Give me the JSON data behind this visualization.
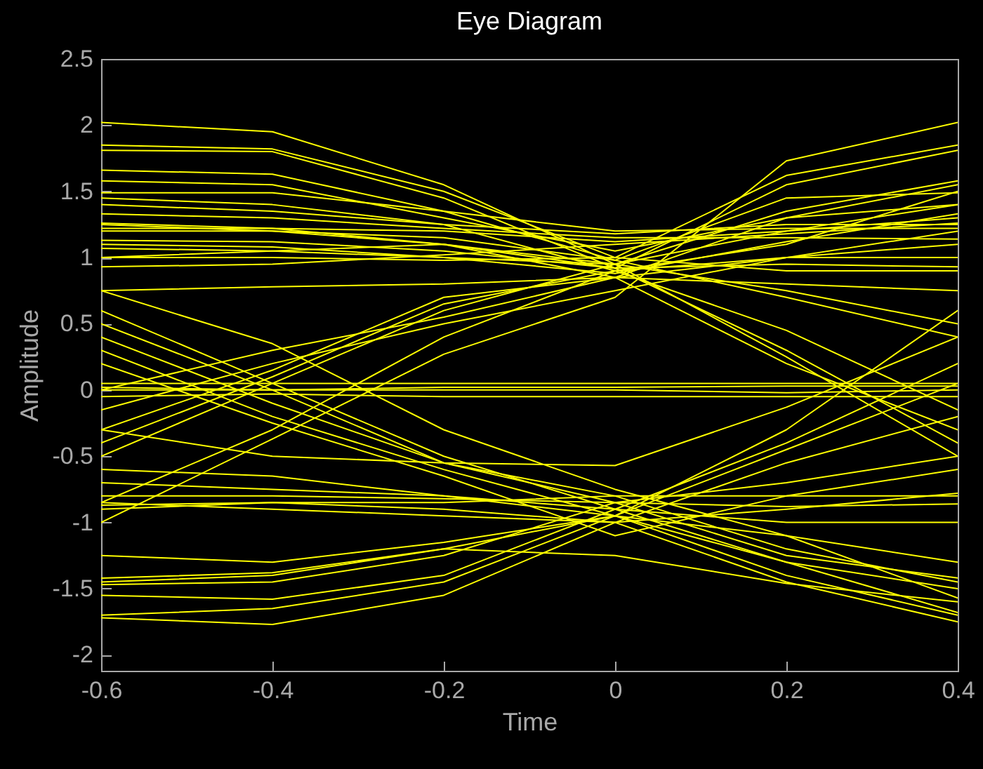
{
  "chart_data": {
    "type": "line",
    "title": "Eye Diagram",
    "xlabel": "Time",
    "ylabel": "Amplitude",
    "x": [
      -0.6,
      -0.4,
      -0.2,
      0,
      0.2,
      0.4
    ],
    "xlim": [
      -0.6,
      0.4
    ],
    "xticks": [
      -0.6,
      -0.4,
      -0.2,
      0,
      0.2,
      0.4
    ],
    "ylim": [
      -2.12,
      2.5
    ],
    "yticks": [
      -2,
      -1.5,
      -1,
      -0.5,
      0,
      0.5,
      1,
      1.5,
      2,
      2.5
    ],
    "series": [
      {
        "color": "#ffff00",
        "values": [
          2.02,
          1.95,
          1.55,
          0.95,
          1.35,
          1.58
        ]
      },
      {
        "color": "#ffff00",
        "values": [
          1.85,
          1.82,
          1.5,
          1.0,
          1.62,
          1.85
        ]
      },
      {
        "color": "#ffff00",
        "values": [
          1.81,
          1.8,
          1.45,
          0.92,
          1.55,
          1.81
        ]
      },
      {
        "color": "#ffff00",
        "values": [
          1.66,
          1.63,
          1.35,
          0.98,
          1.45,
          1.49
        ]
      },
      {
        "color": "#ffff00",
        "values": [
          1.58,
          1.55,
          1.3,
          1.05,
          1.3,
          1.4
        ]
      },
      {
        "color": "#ffff00",
        "values": [
          1.49,
          1.49,
          1.35,
          1.2,
          1.22,
          1.22
        ]
      },
      {
        "color": "#ffff00",
        "values": [
          1.4,
          1.35,
          1.25,
          1.18,
          1.25,
          1.25
        ]
      },
      {
        "color": "#ffff00",
        "values": [
          1.33,
          1.3,
          1.22,
          1.15,
          1.15,
          1.14
        ]
      },
      {
        "color": "#ffff00",
        "values": [
          1.26,
          1.22,
          1.2,
          1.12,
          1.2,
          1.3
        ]
      },
      {
        "color": "#ffff00",
        "values": [
          1.22,
          1.22,
          1.1,
          0.85,
          1.0,
          1.0
        ]
      },
      {
        "color": "#ffff00",
        "values": [
          1.13,
          1.12,
          1.05,
          0.92,
          0.95,
          0.93
        ]
      },
      {
        "color": "#ffff00",
        "values": [
          1.07,
          1.05,
          1.0,
          0.88,
          1.12,
          1.33
        ]
      },
      {
        "color": "#ffff00",
        "values": [
          1.0,
          1.0,
          0.98,
          1.0,
          0.9,
          0.9
        ]
      },
      {
        "color": "#ffff00",
        "values": [
          0.93,
          0.95,
          1.02,
          1.1,
          1.18,
          1.26
        ]
      },
      {
        "color": "#ffff00",
        "values": [
          1.2,
          1.2,
          1.1,
          0.92,
          0.3,
          -0.4
        ]
      },
      {
        "color": "#ffff00",
        "values": [
          1.1,
          1.08,
          1.0,
          0.95,
          0.25,
          -0.5
        ]
      },
      {
        "color": "#ffff00",
        "values": [
          1.45,
          1.4,
          1.25,
          0.9,
          0.45,
          -0.15
        ]
      },
      {
        "color": "#ffff00",
        "values": [
          0.75,
          0.78,
          0.8,
          0.85,
          0.2,
          -0.3
        ]
      },
      {
        "color": "#ffff00",
        "values": [
          1.0,
          1.05,
          1.1,
          0.95,
          0.75,
          0.5
        ]
      },
      {
        "color": "#ffff00",
        "values": [
          1.25,
          1.2,
          1.15,
          0.98,
          0.7,
          0.4
        ]
      },
      {
        "color": "#ffff00",
        "values": [
          -0.5,
          0.05,
          0.6,
          0.95,
          1.2,
          1.4
        ]
      },
      {
        "color": "#ffff00",
        "values": [
          -0.4,
          0.1,
          0.65,
          0.9,
          1.0,
          1.1
        ]
      },
      {
        "color": "#ffff00",
        "values": [
          -0.3,
          0.15,
          0.7,
          0.85,
          0.8,
          0.75
        ]
      },
      {
        "color": "#ffff00",
        "values": [
          -0.85,
          -0.3,
          0.4,
          0.9,
          1.1,
          1.5
        ]
      },
      {
        "color": "#ffff00",
        "values": [
          -1.0,
          -0.37,
          0.27,
          0.7,
          1.73,
          2.02
        ]
      },
      {
        "color": "#ffff00",
        "values": [
          0.0,
          0.3,
          0.55,
          0.85,
          1.3,
          1.55
        ]
      },
      {
        "color": "#ffff00",
        "values": [
          -0.15,
          0.2,
          0.5,
          0.75,
          1.0,
          1.2
        ]
      },
      {
        "color": "#ffff00",
        "values": [
          0.05,
          0.05,
          0.05,
          0.05,
          0.05,
          0.05
        ]
      },
      {
        "color": "#ffff00",
        "values": [
          0.0,
          0.0,
          0.0,
          0.0,
          -0.02,
          0.0
        ]
      },
      {
        "color": "#ffff00",
        "values": [
          -0.05,
          -0.03,
          -0.05,
          -0.05,
          -0.05,
          -0.05
        ]
      },
      {
        "color": "#ffff00",
        "values": [
          0.02,
          0.0,
          0.02,
          0.02,
          0.03,
          0.03
        ]
      },
      {
        "color": "#ffff00",
        "values": [
          0.6,
          0.05,
          -0.5,
          -0.9,
          -1.0,
          -1.0
        ]
      },
      {
        "color": "#ffff00",
        "values": [
          0.5,
          0.0,
          -0.55,
          -0.85,
          -0.7,
          -0.5
        ]
      },
      {
        "color": "#ffff00",
        "values": [
          0.4,
          -0.1,
          -0.55,
          -0.8,
          -1.2,
          -1.45
        ]
      },
      {
        "color": "#ffff00",
        "values": [
          0.75,
          0.35,
          -0.3,
          -0.75,
          -1.1,
          -1.57
        ]
      },
      {
        "color": "#ffff00",
        "values": [
          0.3,
          -0.2,
          -0.6,
          -0.95,
          -1.3,
          -1.68
        ]
      },
      {
        "color": "#ffff00",
        "values": [
          -1.72,
          -1.77,
          -1.55,
          -1.0,
          -1.45,
          -1.75
        ]
      },
      {
        "color": "#ffff00",
        "values": [
          -1.7,
          -1.65,
          -1.45,
          -0.95,
          -1.4,
          -1.7
        ]
      },
      {
        "color": "#ffff00",
        "values": [
          -1.55,
          -1.58,
          -1.4,
          -0.9,
          -1.3,
          -1.5
        ]
      },
      {
        "color": "#ffff00",
        "values": [
          -1.47,
          -1.45,
          -1.25,
          -0.85,
          -1.25,
          -1.42
        ]
      },
      {
        "color": "#ffff00",
        "values": [
          -1.42,
          -1.38,
          -1.2,
          -1.25,
          -1.46,
          -1.6
        ]
      },
      {
        "color": "#ffff00",
        "values": [
          -1.25,
          -1.3,
          -1.15,
          -0.95,
          -1.1,
          -1.3
        ]
      },
      {
        "color": "#ffff00",
        "values": [
          -0.87,
          -0.85,
          -0.85,
          -0.8,
          -0.8,
          -0.8
        ]
      },
      {
        "color": "#ffff00",
        "values": [
          -0.8,
          -0.8,
          -0.82,
          -0.85,
          -0.88,
          -0.86
        ]
      },
      {
        "color": "#ffff00",
        "values": [
          -0.85,
          -0.9,
          -0.95,
          -1.0,
          -0.9,
          -0.78
        ]
      },
      {
        "color": "#ffff00",
        "values": [
          -0.6,
          -0.65,
          -0.8,
          -0.95,
          -0.3,
          0.6
        ]
      },
      {
        "color": "#ffff00",
        "values": [
          -0.7,
          -0.75,
          -0.8,
          -0.9,
          -0.4,
          0.2
        ]
      },
      {
        "color": "#ffff00",
        "values": [
          -1.45,
          -1.4,
          -1.2,
          -0.95,
          -0.45,
          0.05
        ]
      },
      {
        "color": "#ffff00",
        "values": [
          -0.9,
          -0.85,
          -0.9,
          -1.0,
          -0.55,
          -0.2
        ]
      },
      {
        "color": "#ffff00",
        "values": [
          -0.3,
          -0.5,
          -0.55,
          -0.57,
          -0.13,
          0.4
        ]
      },
      {
        "color": "#ffff00",
        "values": [
          0.2,
          -0.25,
          -0.65,
          -1.1,
          -0.8,
          -0.6
        ]
      }
    ]
  }
}
